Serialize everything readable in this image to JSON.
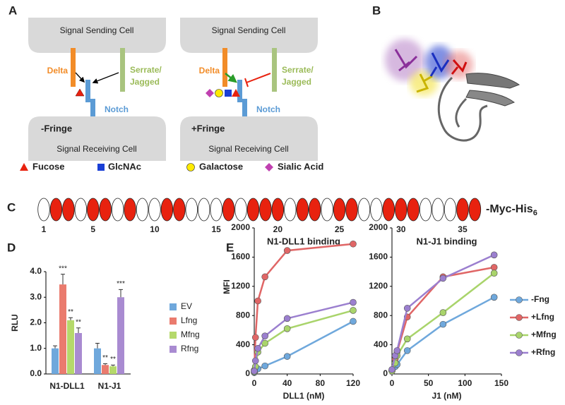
{
  "panel_labels": [
    "A",
    "B",
    "C",
    "D",
    "E"
  ],
  "panel_a": {
    "diagrams": [
      {
        "sending": "Signal Sending Cell",
        "receiving": "Signal Receiving Cell",
        "delta": "Delta",
        "serrate": [
          "Serrate/",
          "Jagged"
        ],
        "notch": "Notch",
        "fringe": "-Fringe"
      },
      {
        "sending": "Signal Sending Cell",
        "receiving": "Signal Receiving Cell",
        "delta": "Delta",
        "serrate": [
          "Serrate/",
          "Jagged"
        ],
        "notch": "Notch",
        "fringe": "+Fringe"
      }
    ],
    "legend": [
      "Fucose",
      "GlcNAc",
      "Galactose",
      "Sialic Acid"
    ]
  },
  "panel_c": {
    "repeat_colors": [
      "#ffffff",
      "#e8220f",
      "#e8220f",
      "#ffffff",
      "#e8220f",
      "#e8220f",
      "#ffffff",
      "#e8220f",
      "#ffffff",
      "#ffffff",
      "#e8220f",
      "#e8220f",
      "#ffffff",
      "#ffffff",
      "#ffffff",
      "#e8220f",
      "#ffffff",
      "#e8220f",
      "#e8220f",
      "#e8220f",
      "#ffffff",
      "#e8220f",
      "#e8220f",
      "#ffffff",
      "#e8220f",
      "#e8220f",
      "#ffffff",
      "#ffffff",
      "#e8220f",
      "#e8220f",
      "#e8220f",
      "#ffffff",
      "#ffffff",
      "#ffffff",
      "#e8220f",
      "#e8220f"
    ],
    "ticks": [
      1,
      5,
      10,
      15,
      20,
      25,
      30,
      35
    ],
    "tag": "-Myc-His",
    "tag_sub": "6"
  },
  "chart_data": [
    {
      "type": "bar",
      "ylabel": "RLU",
      "categories": [
        "N1-DLL1",
        "N1-J1"
      ],
      "ylim": [
        0,
        4
      ],
      "yticks": [
        {
          "value": 0,
          "label": "0.0"
        },
        {
          "value": 1,
          "label": "1.0"
        },
        {
          "value": 2,
          "label": "2.0"
        },
        {
          "value": 3,
          "label": "3.0"
        },
        {
          "value": 4,
          "label": "4.0"
        }
      ],
      "series": [
        {
          "name": "EV",
          "color": "#6fa8dc",
          "values": [
            1.0,
            1.0
          ],
          "errors": [
            0.1,
            0.2
          ],
          "stars": [
            null,
            null
          ]
        },
        {
          "name": "Lfng",
          "color": "#ea7b6e",
          "values": [
            3.5,
            0.35
          ],
          "errors": [
            0.4,
            0.05
          ],
          "stars": [
            "***",
            "**"
          ]
        },
        {
          "name": "Mfng",
          "color": "#b5d96b",
          "values": [
            2.1,
            0.3
          ],
          "errors": [
            0.1,
            0.05
          ],
          "stars": [
            "**",
            "**"
          ]
        },
        {
          "name": "Rfng",
          "color": "#a98bd1",
          "values": [
            1.6,
            3.0
          ],
          "errors": [
            0.2,
            0.3
          ],
          "stars": [
            "**",
            "***"
          ]
        }
      ]
    },
    {
      "type": "line",
      "title": "N1-DLL1 binding",
      "xlabel": "DLL1 (nM)",
      "ylabel": "MFI",
      "x": [
        0,
        1.5,
        4.4,
        13,
        40,
        120
      ],
      "xlim": [
        0,
        120
      ],
      "xticks": [
        0,
        40,
        80,
        120
      ],
      "ylim": [
        0,
        2000
      ],
      "yticks": [
        0,
        400,
        800,
        1200,
        1600,
        2000
      ],
      "series": [
        {
          "color": "#6fa8dc",
          "values": [
            20,
            50,
            70,
            110,
            240,
            720
          ]
        },
        {
          "color": "#e06666",
          "values": [
            50,
            500,
            1000,
            1330,
            1690,
            1780
          ]
        },
        {
          "color": "#a9d46b",
          "values": [
            30,
            100,
            300,
            420,
            620,
            870
          ]
        },
        {
          "color": "#9b7fcf",
          "values": [
            40,
            180,
            350,
            520,
            760,
            980
          ]
        }
      ]
    },
    {
      "type": "line",
      "title": "N1-J1 binding",
      "xlabel": "J1 (nM)",
      "x": [
        0,
        4.4,
        7,
        21,
        70,
        140
      ],
      "xlim": [
        0,
        150
      ],
      "xticks": [
        0,
        50,
        100,
        150
      ],
      "ylim": [
        0,
        2000
      ],
      "yticks": [
        0,
        400,
        800,
        1200,
        1600,
        2000
      ],
      "series": [
        {
          "name": "-Fng",
          "color": "#6fa8dc",
          "values": [
            40,
            100,
            130,
            320,
            680,
            1050
          ]
        },
        {
          "name": "+Lfng",
          "color": "#e06666",
          "values": [
            50,
            200,
            300,
            780,
            1330,
            1460
          ]
        },
        {
          "name": "+Mfng",
          "color": "#a9d46b",
          "values": [
            40,
            150,
            250,
            480,
            840,
            1380
          ]
        },
        {
          "name": "+Rfng",
          "color": "#9b7fcf",
          "values": [
            60,
            250,
            320,
            900,
            1310,
            1630
          ]
        }
      ]
    }
  ]
}
